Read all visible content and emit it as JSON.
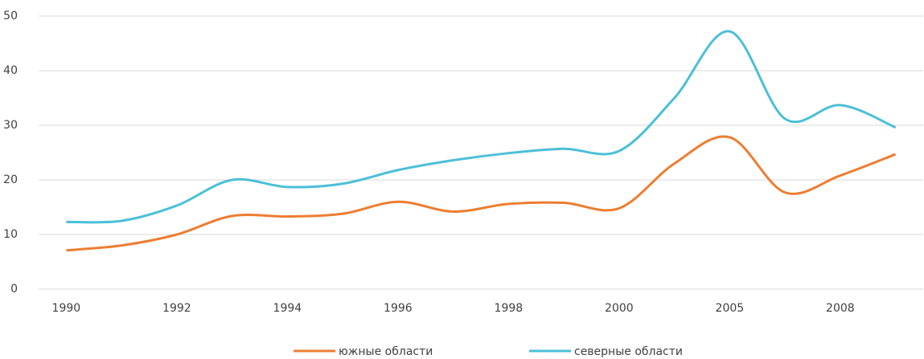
{
  "chart_data": {
    "type": "line",
    "categories": [
      "1990",
      null,
      "1992",
      null,
      "1994",
      null,
      "1996",
      null,
      "1998",
      null,
      "2000",
      null,
      "2005",
      null,
      "2008",
      null
    ],
    "series": [
      {
        "name": "южные области",
        "color": "#ed7d31",
        "values": [
          7.1,
          8.0,
          10.0,
          13.4,
          13.3,
          13.8,
          16.0,
          14.2,
          15.6,
          15.8,
          14.8,
          23.0,
          27.8,
          17.7,
          20.8,
          24.7
        ]
      },
      {
        "name": "северные области",
        "color": "#4bbfd8",
        "values": [
          12.3,
          12.5,
          15.3,
          20.0,
          18.7,
          19.3,
          21.8,
          23.6,
          24.9,
          25.7,
          25.3,
          35.0,
          47.2,
          31.2,
          33.7,
          29.6
        ]
      }
    ],
    "ylim": [
      0,
      50
    ],
    "yticks": [
      0,
      10,
      20,
      30,
      40,
      50
    ],
    "grid": true,
    "smooth": true,
    "legend": "bottom"
  }
}
